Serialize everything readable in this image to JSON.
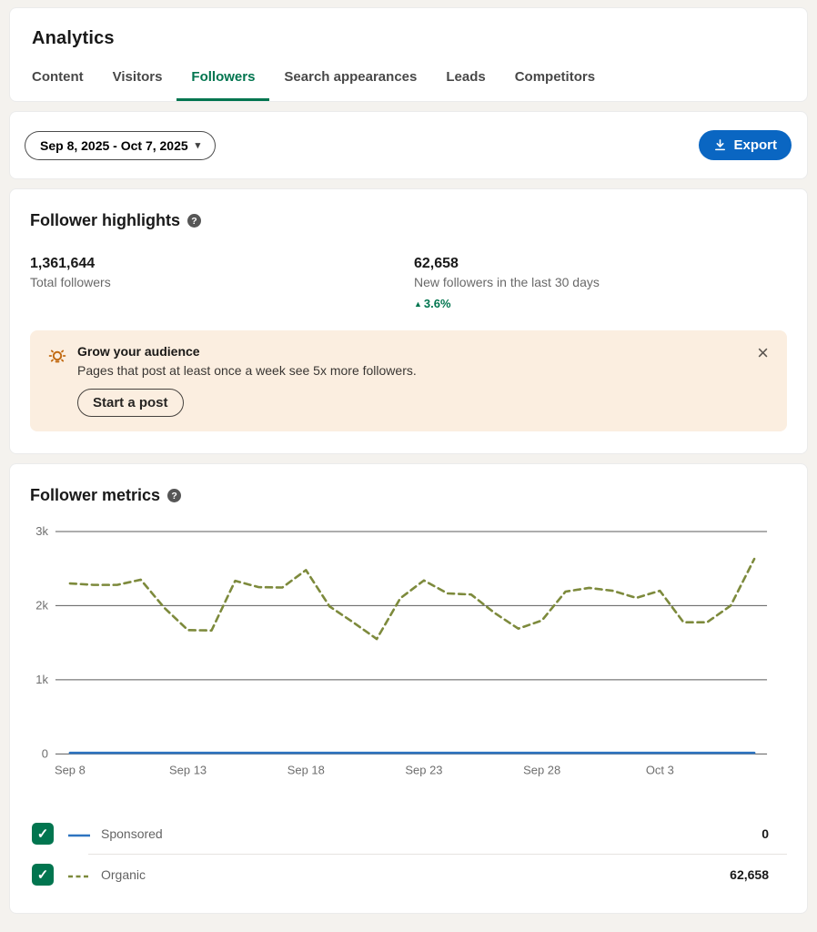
{
  "header": {
    "title": "Analytics",
    "tabs": [
      {
        "label": "Content",
        "active": false
      },
      {
        "label": "Visitors",
        "active": false
      },
      {
        "label": "Followers",
        "active": true
      },
      {
        "label": "Search appearances",
        "active": false
      },
      {
        "label": "Leads",
        "active": false
      },
      {
        "label": "Competitors",
        "active": false
      }
    ]
  },
  "toolbar": {
    "date_range": "Sep 8, 2025 - Oct 7, 2025",
    "date_chevron": "▾",
    "export_label": "Export"
  },
  "highlights": {
    "title": "Follower highlights",
    "help_glyph": "?",
    "stats": [
      {
        "value": "1,361,644",
        "label": "Total followers"
      },
      {
        "value": "62,658",
        "label": "New followers in the last 30 days",
        "delta_arrow": "▲",
        "delta": "3.6%"
      }
    ],
    "banner": {
      "title": "Grow your audience",
      "body": "Pages that post at least once a week see 5x more followers.",
      "cta_label": "Start a post",
      "close_glyph": "×",
      "background": "#fbeee0",
      "icon": "lightbulb-idea",
      "icon_color": "#c26a12"
    }
  },
  "metrics": {
    "title": "Follower metrics",
    "help_glyph": "?",
    "legend_check_glyph": "✓",
    "legend_check_color": "#01754f"
  },
  "chart_data": {
    "type": "line",
    "title": "Follower metrics",
    "x": [
      "Sep 8",
      "Sep 9",
      "Sep 10",
      "Sep 11",
      "Sep 12",
      "Sep 13",
      "Sep 14",
      "Sep 15",
      "Sep 16",
      "Sep 17",
      "Sep 18",
      "Sep 19",
      "Sep 20",
      "Sep 21",
      "Sep 22",
      "Sep 23",
      "Sep 24",
      "Sep 25",
      "Sep 26",
      "Sep 27",
      "Sep 28",
      "Sep 29",
      "Sep 30",
      "Oct 1",
      "Oct 2",
      "Oct 3",
      "Oct 4",
      "Oct 5",
      "Oct 6",
      "Oct 7"
    ],
    "series": [
      {
        "name": "Sponsored",
        "style": "solid",
        "color": "#2e74c0",
        "total": "0",
        "values": [
          0,
          0,
          0,
          0,
          0,
          0,
          0,
          0,
          0,
          0,
          0,
          0,
          0,
          0,
          0,
          0,
          0,
          0,
          0,
          0,
          0,
          0,
          0,
          0,
          0,
          0,
          0,
          0,
          0,
          0
        ]
      },
      {
        "name": "Organic",
        "style": "dashed",
        "color": "#7d8a3c",
        "total": "62,658",
        "values": [
          2300,
          2280,
          2280,
          2350,
          1970,
          1670,
          1665,
          2335,
          2250,
          2245,
          2480,
          1990,
          1775,
          1550,
          2100,
          2340,
          2165,
          2150,
          1900,
          1690,
          1800,
          2190,
          2240,
          2200,
          2105,
          2200,
          1775,
          1775,
          2000,
          2630
        ]
      }
    ],
    "ylim": [
      0,
      3000
    ],
    "yticks": [
      "0",
      "1k",
      "2k",
      "3k"
    ],
    "ytick_values": [
      0,
      1000,
      2000,
      3000
    ],
    "xticks": [
      "Sep 8",
      "Sep 13",
      "Sep 18",
      "Sep 23",
      "Sep 28",
      "Oct 3"
    ],
    "xtick_positions": [
      0,
      5,
      10,
      15,
      20,
      25
    ],
    "grid": true,
    "legend_position": "bottom"
  }
}
